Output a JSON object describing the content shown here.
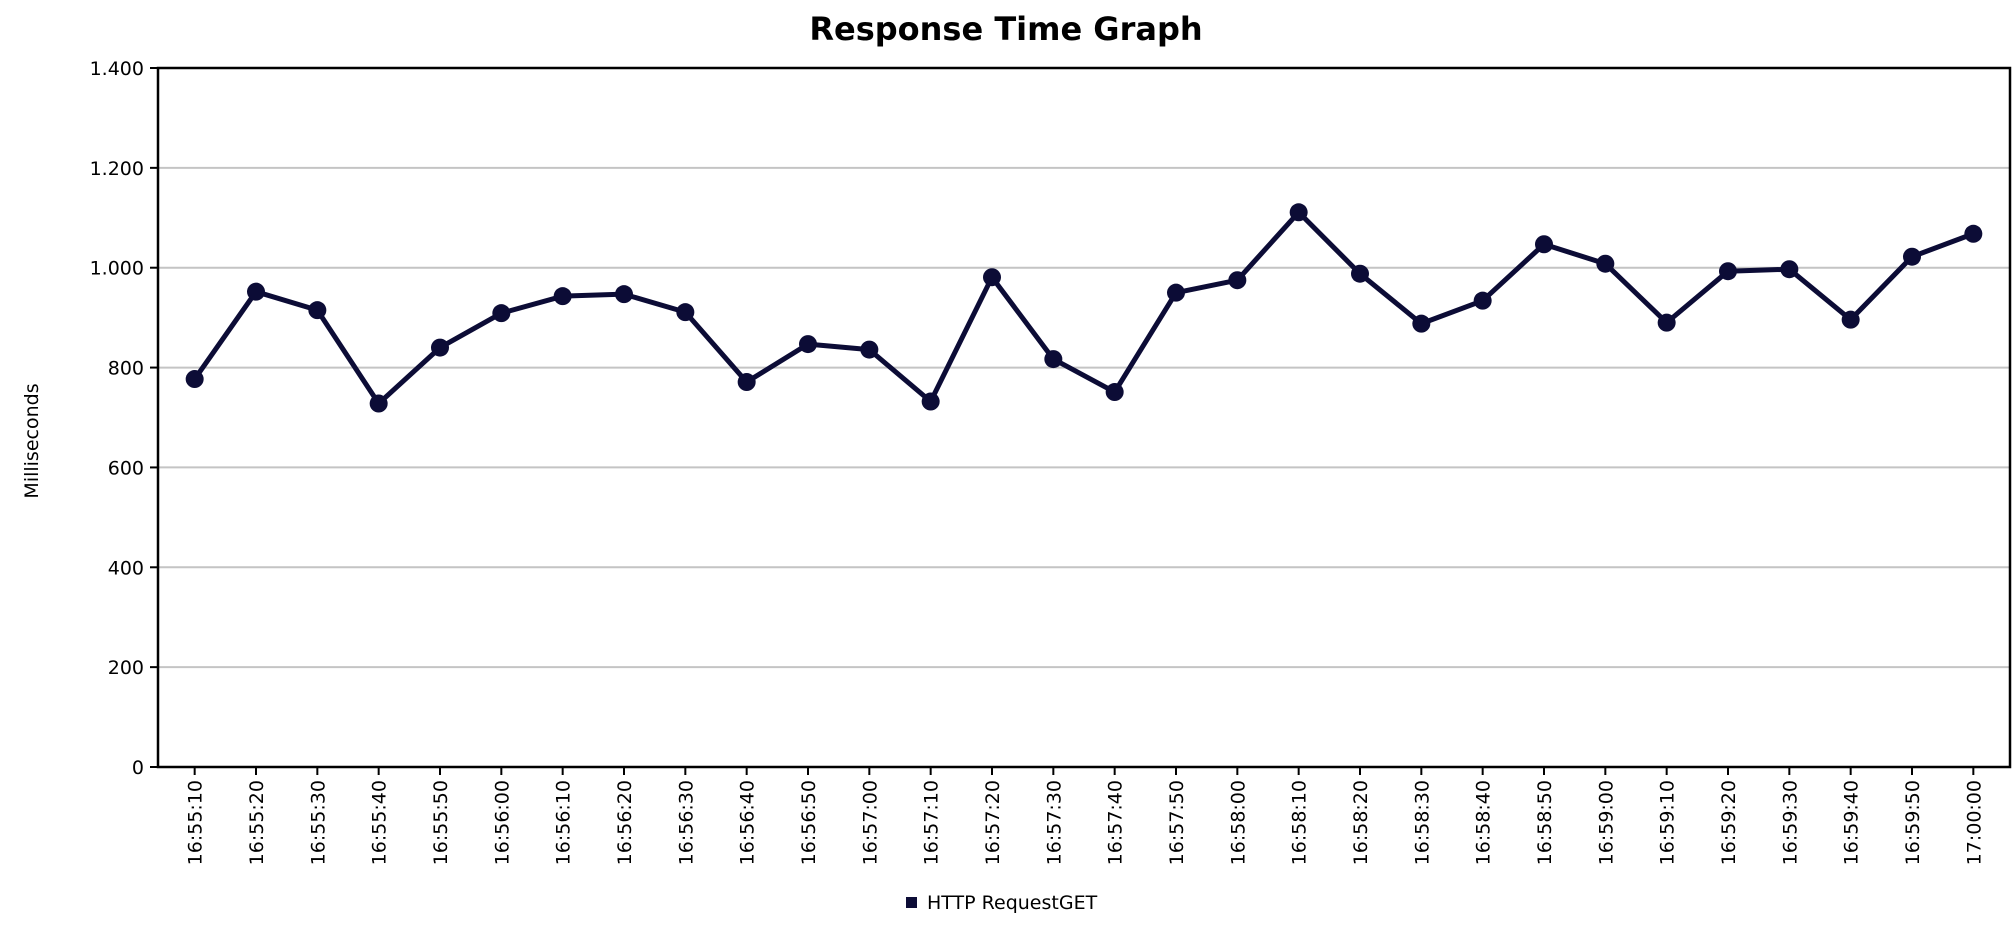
{
  "chart_data": {
    "type": "line",
    "title": "Response Time Graph",
    "xlabel": "",
    "ylabel": "Milliseconds",
    "ylim": [
      0,
      1400
    ],
    "yticks": [
      0,
      200,
      400,
      600,
      800,
      1000,
      1200,
      1400
    ],
    "ytick_labels": [
      "0",
      "200",
      "400",
      "600",
      "800",
      "1.000",
      "1.200",
      "1.400"
    ],
    "grid": true,
    "legend_position": "bottom",
    "categories": [
      "16:55:10",
      "16:55:20",
      "16:55:30",
      "16:55:40",
      "16:55:50",
      "16:56:00",
      "16:56:10",
      "16:56:20",
      "16:56:30",
      "16:56:40",
      "16:56:50",
      "16:57:00",
      "16:57:10",
      "16:57:20",
      "16:57:30",
      "16:57:40",
      "16:57:50",
      "16:58:00",
      "16:58:10",
      "16:58:20",
      "16:58:30",
      "16:58:40",
      "16:58:50",
      "16:59:00",
      "16:59:10",
      "16:59:20",
      "16:59:30",
      "16:59:40",
      "16:59:50",
      "17:00:00"
    ],
    "series": [
      {
        "name": "HTTP RequestGET",
        "color": "#0c0c36",
        "values": [
          777,
          952,
          915,
          728,
          840,
          909,
          943,
          947,
          911,
          771,
          847,
          836,
          732,
          981,
          817,
          751,
          950,
          975,
          1111,
          988,
          888,
          934,
          1047,
          1008,
          890,
          993,
          997,
          896,
          1022,
          1068
        ]
      }
    ]
  }
}
